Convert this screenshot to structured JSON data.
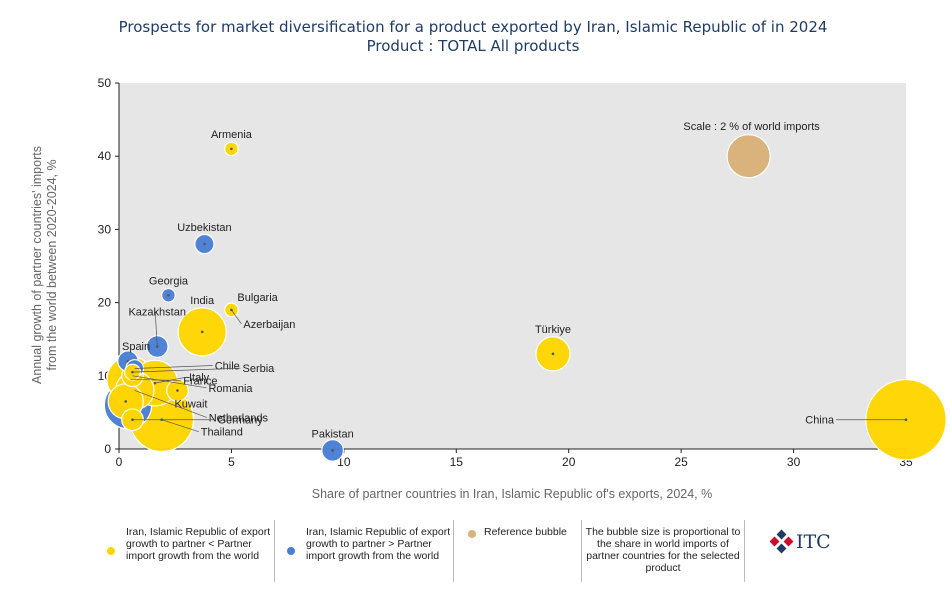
{
  "chart_data": {
    "type": "scatter",
    "title": "Prospects for market diversification for a product exported by Iran, Islamic Republic of in 2024",
    "subtitle": "Product : TOTAL All products",
    "xlabel": "Share of partner countries in Iran, Islamic Republic of's exports, 2024, %",
    "ylabel_line1": "Annual growth of partner countries' imports",
    "ylabel_line2": "from the world between 2020-2024, %",
    "xlim": [
      0,
      35
    ],
    "ylim": [
      0,
      50
    ],
    "xticks": [
      "0",
      "5",
      "10",
      "15",
      "20",
      "25",
      "30",
      "35"
    ],
    "yticks": [
      "0",
      "10",
      "20",
      "30",
      "40",
      "50"
    ],
    "grid": false,
    "colors": {
      "yellow": "#ffd500",
      "blue": "#4a7fd4",
      "reference": "#d9b27c",
      "plot_bg": "#e6e6e6"
    },
    "reference_bubble": {
      "label": "Scale : 2 % of world imports",
      "x": 28,
      "y": 40,
      "size": 2.0
    },
    "points": [
      {
        "name": "China",
        "x": 35.0,
        "y": 4.0,
        "size": 8.5,
        "group": "yellow"
      },
      {
        "name": "Türkiye",
        "x": 19.3,
        "y": 13.0,
        "size": 1.1,
        "group": "yellow"
      },
      {
        "name": "Pakistan",
        "x": 9.5,
        "y": -0.2,
        "size": 0.3,
        "group": "blue"
      },
      {
        "name": "Armenia",
        "x": 5.0,
        "y": 41.0,
        "size": 0.05,
        "group": "yellow"
      },
      {
        "name": "Uzbekistan",
        "x": 3.8,
        "y": 28.0,
        "size": 0.2,
        "group": "blue"
      },
      {
        "name": "Georgia",
        "x": 2.2,
        "y": 21.0,
        "size": 0.05,
        "group": "blue"
      },
      {
        "name": "India",
        "x": 3.7,
        "y": 16.0,
        "size": 2.6,
        "group": "yellow"
      },
      {
        "name": "Bulgaria",
        "x": 5.0,
        "y": 19.0,
        "size": 0.05,
        "group": "yellow"
      },
      {
        "name": "Azerbaijan",
        "x": 5.0,
        "y": 19.0,
        "size": 0.05,
        "group": "yellow"
      },
      {
        "name": "Kazakhstan",
        "x": 1.7,
        "y": 14.0,
        "size": 0.3,
        "group": "blue"
      },
      {
        "name": "Spain",
        "x": 0.4,
        "y": 12.0,
        "size": 0.25,
        "group": "blue"
      },
      {
        "name": "Chile",
        "x": 0.7,
        "y": 11.0,
        "size": 0.15,
        "group": "blue"
      },
      {
        "name": "Serbia",
        "x": 0.6,
        "y": 10.5,
        "size": 0.1,
        "group": "yellow"
      },
      {
        "name": "France",
        "x": 0.5,
        "y": 9.5,
        "size": 2.4,
        "group": "yellow"
      },
      {
        "name": "Romania",
        "x": 0.6,
        "y": 10.0,
        "size": 0.3,
        "group": "yellow"
      },
      {
        "name": "Italy",
        "x": 1.6,
        "y": 9.0,
        "size": 2.3,
        "group": "yellow"
      },
      {
        "name": "Kuwait",
        "x": 2.6,
        "y": 8.0,
        "size": 0.3,
        "group": "yellow"
      },
      {
        "name": "Netherlands",
        "x": 0.7,
        "y": 8.0,
        "size": 1.5,
        "group": "yellow"
      },
      {
        "name": "Blue large",
        "x": 0.4,
        "y": 6.0,
        "size": 2.5,
        "group": "blue",
        "nolabel": true
      },
      {
        "name": "Yellow mid",
        "x": 0.3,
        "y": 6.5,
        "size": 1.2,
        "group": "yellow",
        "nolabel": true
      },
      {
        "name": "Germany",
        "x": 0.6,
        "y": 4.0,
        "size": 0.3,
        "group": "yellow"
      },
      {
        "name": "Thailand",
        "x": 1.9,
        "y": 4.0,
        "size": 5.0,
        "group": "yellow"
      }
    ]
  },
  "legend": {
    "yellow_text": "Iran, Islamic Republic of export growth to partner < Partner import growth from the world",
    "blue_text": "Iran, Islamic Republic of export growth to partner > Partner import growth from the world",
    "reference_text": "Reference bubble",
    "size_text": "The bubble size is proportional to the share in world imports of partner countries for the selected product"
  },
  "logo": {
    "text": "ITC"
  }
}
